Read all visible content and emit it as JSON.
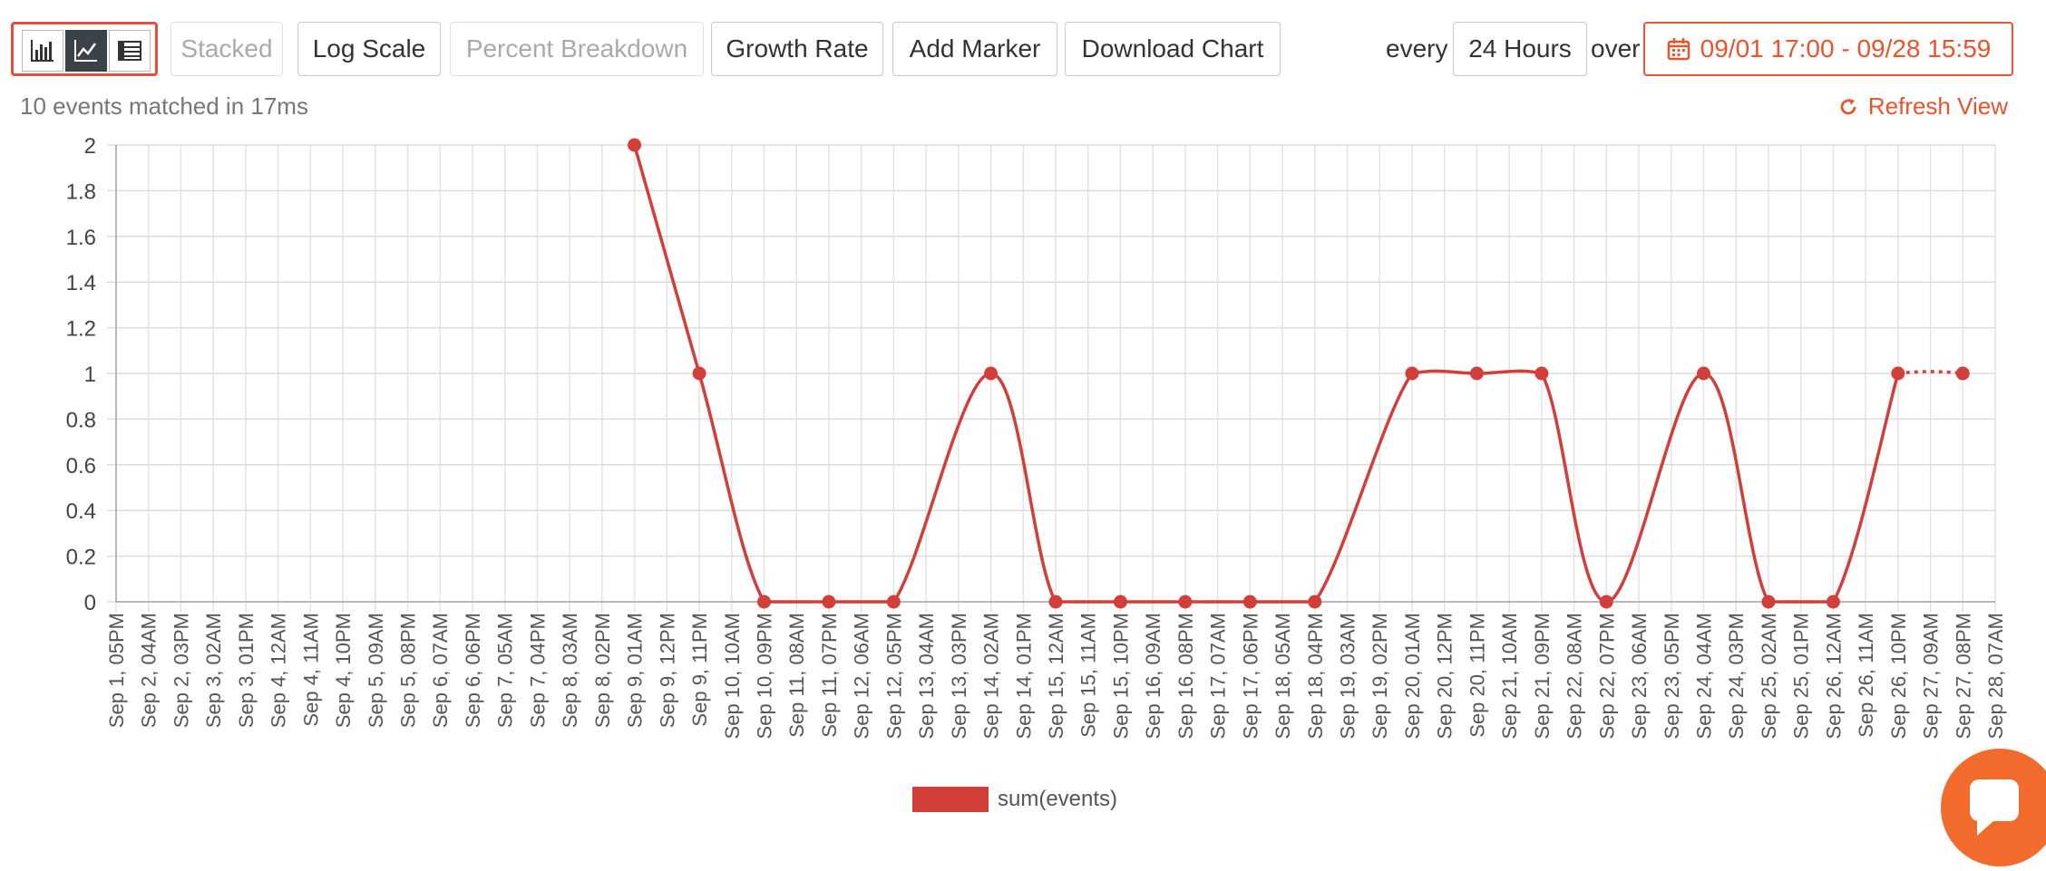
{
  "toolbar": {
    "view_buttons": [
      {
        "icon": "bar-chart-icon",
        "active": false
      },
      {
        "icon": "line-chart-icon",
        "active": true
      },
      {
        "icon": "table-icon",
        "active": false
      }
    ],
    "stacked_label": "Stacked",
    "log_scale_label": "Log Scale",
    "percent_breakdown_label": "Percent Breakdown",
    "growth_rate_label": "Growth Rate",
    "add_marker_label": "Add Marker",
    "download_chart_label": "Download Chart",
    "every_label": "every",
    "interval_value": "24 Hours",
    "over_label": "over",
    "date_range": "09/01 17:00 - 09/28 15:59"
  },
  "status": {
    "matched_text": "10 events matched in 17ms",
    "refresh_label": "Refresh View"
  },
  "colors": {
    "accent": "#e8542d",
    "series": "#d23f3a",
    "highlight_border": "#e74c3c"
  },
  "chart_data": {
    "type": "line",
    "categories": [
      "Sep 1, 05PM",
      "Sep 2, 04AM",
      "Sep 2, 03PM",
      "Sep 3, 02AM",
      "Sep 3, 01PM",
      "Sep 4, 12AM",
      "Sep 4, 11AM",
      "Sep 4, 10PM",
      "Sep 5, 09AM",
      "Sep 5, 08PM",
      "Sep 6, 07AM",
      "Sep 6, 06PM",
      "Sep 7, 05AM",
      "Sep 7, 04PM",
      "Sep 8, 03AM",
      "Sep 8, 02PM",
      "Sep 9, 01AM",
      "Sep 9, 12PM",
      "Sep 9, 11PM",
      "Sep 10, 10AM",
      "Sep 10, 09PM",
      "Sep 11, 08AM",
      "Sep 11, 07PM",
      "Sep 12, 06AM",
      "Sep 12, 05PM",
      "Sep 13, 04AM",
      "Sep 13, 03PM",
      "Sep 14, 02AM",
      "Sep 14, 01PM",
      "Sep 15, 12AM",
      "Sep 15, 11AM",
      "Sep 15, 10PM",
      "Sep 16, 09AM",
      "Sep 16, 08PM",
      "Sep 17, 07AM",
      "Sep 17, 06PM",
      "Sep 18, 05AM",
      "Sep 18, 04PM",
      "Sep 19, 03AM",
      "Sep 19, 02PM",
      "Sep 20, 01AM",
      "Sep 20, 12PM",
      "Sep 20, 11PM",
      "Sep 21, 10AM",
      "Sep 21, 09PM",
      "Sep 22, 08AM",
      "Sep 22, 07PM",
      "Sep 23, 06AM",
      "Sep 23, 05PM",
      "Sep 24, 04AM",
      "Sep 24, 03PM",
      "Sep 25, 02AM",
      "Sep 25, 01PM",
      "Sep 26, 12AM",
      "Sep 26, 11AM",
      "Sep 26, 10PM",
      "Sep 27, 09AM",
      "Sep 27, 08PM",
      "Sep 28, 07AM"
    ],
    "series": [
      {
        "name": "sum(events)",
        "values": [
          null,
          null,
          null,
          null,
          null,
          null,
          null,
          null,
          null,
          null,
          null,
          null,
          null,
          null,
          null,
          null,
          2,
          null,
          1,
          null,
          0,
          null,
          0,
          null,
          0,
          null,
          null,
          1,
          null,
          0,
          null,
          0,
          null,
          0,
          null,
          0,
          null,
          0,
          null,
          null,
          1,
          null,
          1,
          null,
          1,
          null,
          0,
          null,
          null,
          1,
          null,
          0,
          null,
          0,
          null,
          1,
          null,
          1,
          null
        ],
        "dotted_last_segment": true
      }
    ],
    "y_ticks": [
      "0",
      "0.2",
      "0.4",
      "0.6",
      "0.8",
      "1",
      "1.2",
      "1.4",
      "1.6",
      "1.8",
      "2"
    ],
    "ylim": [
      0,
      2
    ],
    "grid": true,
    "legend": "bottom-center",
    "xlabel": "",
    "ylabel": "",
    "title": ""
  }
}
